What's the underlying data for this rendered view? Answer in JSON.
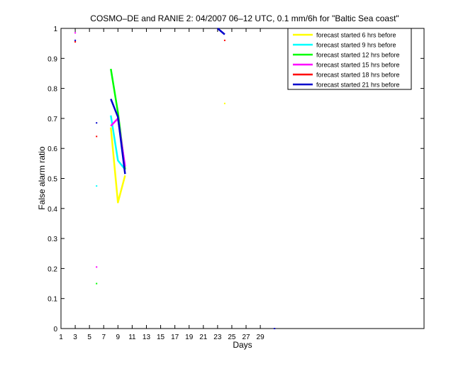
{
  "chart_data": {
    "type": "line",
    "title": "COSMO–DE and RANIE 2: 04/2007 06–12 UTC, 0.1 mm/6h for \"Baltic Sea coast\"",
    "xlabel": "Days",
    "ylabel": "False alarm ratio",
    "xlim": [
      1,
      52
    ],
    "ylim": [
      0,
      1
    ],
    "xticks": [
      1,
      3,
      5,
      7,
      9,
      11,
      13,
      15,
      17,
      19,
      21,
      23,
      25,
      27,
      29
    ],
    "yticks": [
      0,
      0.1,
      0.2,
      0.3,
      0.4,
      0.5,
      0.6,
      0.7,
      0.8,
      0.9,
      1
    ],
    "ytick_labels": [
      "0",
      "0.1",
      "0.2",
      "0.3",
      "0.4",
      "0.5",
      "0.6",
      "0.7",
      "0.8",
      "0.9",
      "1"
    ],
    "grid": false,
    "legend_position": "top-right",
    "series": [
      {
        "name": "forecast started 6 hrs before",
        "color": "#ffff00",
        "segments": [
          [
            [
              8,
              0.67
            ],
            [
              9,
              0.42
            ],
            [
              10,
              0.51
            ]
          ]
        ],
        "points": [
          [
            24,
            0.75
          ]
        ]
      },
      {
        "name": "forecast started 9 hrs before",
        "color": "#00ffff",
        "segments": [
          [
            [
              8,
              0.71
            ],
            [
              9,
              0.56
            ],
            [
              10,
              0.53
            ]
          ]
        ],
        "points": [
          [
            6,
            0.475
          ]
        ]
      },
      {
        "name": "forecast started 12 hrs before",
        "color": "#00ff00",
        "segments": [
          [
            [
              8,
              0.865
            ],
            [
              9,
              0.72
            ],
            [
              10,
              0.53
            ]
          ]
        ],
        "points": [
          [
            6,
            0.15
          ]
        ]
      },
      {
        "name": "forecast started 15 hrs before",
        "color": "#ff00ff",
        "segments": [
          [
            [
              8,
              0.675
            ],
            [
              9,
              0.7
            ],
            [
              10,
              0.54
            ]
          ]
        ],
        "points": [
          [
            3,
            0.985
          ],
          [
            6,
            0.205
          ]
        ]
      },
      {
        "name": "forecast started 18 hrs before",
        "color": "#ff0000",
        "segments": [],
        "points": [
          [
            3,
            0.955
          ],
          [
            6,
            0.64
          ],
          [
            24,
            0.96
          ]
        ]
      },
      {
        "name": "forecast started 21 hrs before",
        "color": "#0000cc",
        "segments": [
          [
            [
              8,
              0.765
            ],
            [
              9,
              0.705
            ],
            [
              10,
              0.515
            ]
          ],
          [
            [
              23,
              1.0
            ],
            [
              24,
              0.98
            ]
          ]
        ],
        "points": [
          [
            3,
            0.96
          ],
          [
            6,
            0.685
          ],
          [
            31,
            0.0
          ]
        ]
      }
    ]
  }
}
